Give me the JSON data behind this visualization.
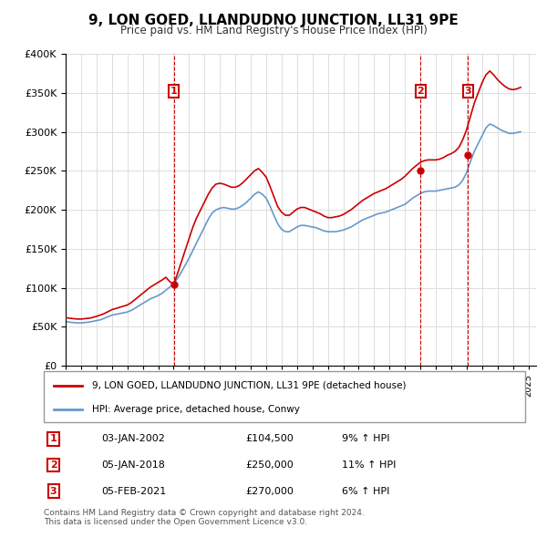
{
  "title": "9, LON GOED, LLANDUDNO JUNCTION, LL31 9PE",
  "subtitle": "Price paid vs. HM Land Registry's House Price Index (HPI)",
  "ylabel_ticks": [
    "£0",
    "£50K",
    "£100K",
    "£150K",
    "£200K",
    "£250K",
    "£300K",
    "£350K",
    "£400K"
  ],
  "ylim": [
    0,
    400000
  ],
  "xlim_start": 1995.0,
  "xlim_end": 2025.5,
  "sale_color": "#cc0000",
  "hpi_color": "#6699cc",
  "sale_label": "9, LON GOED, LLANDUDNO JUNCTION, LL31 9PE (detached house)",
  "hpi_label": "HPI: Average price, detached house, Conwy",
  "sales": [
    {
      "num": 1,
      "year": 2002.02,
      "price": 104500,
      "pct": "9%",
      "date_str": "03-JAN-2002",
      "price_str": "£104,500"
    },
    {
      "num": 2,
      "year": 2018.02,
      "price": 250000,
      "pct": "11%",
      "date_str": "05-JAN-2018",
      "price_str": "£250,000"
    },
    {
      "num": 3,
      "year": 2021.09,
      "price": 270000,
      "pct": "6%",
      "date_str": "05-FEB-2021",
      "price_str": "£270,000"
    }
  ],
  "footnote": "Contains HM Land Registry data © Crown copyright and database right 2024.\nThis data is licensed under the Open Government Licence v3.0.",
  "hpi_data": {
    "years": [
      1995.0,
      1995.25,
      1995.5,
      1995.75,
      1996.0,
      1996.25,
      1996.5,
      1996.75,
      1997.0,
      1997.25,
      1997.5,
      1997.75,
      1998.0,
      1998.25,
      1998.5,
      1998.75,
      1999.0,
      1999.25,
      1999.5,
      1999.75,
      2000.0,
      2000.25,
      2000.5,
      2000.75,
      2001.0,
      2001.25,
      2001.5,
      2001.75,
      2002.0,
      2002.25,
      2002.5,
      2002.75,
      2003.0,
      2003.25,
      2003.5,
      2003.75,
      2004.0,
      2004.25,
      2004.5,
      2004.75,
      2005.0,
      2005.25,
      2005.5,
      2005.75,
      2006.0,
      2006.25,
      2006.5,
      2006.75,
      2007.0,
      2007.25,
      2007.5,
      2007.75,
      2008.0,
      2008.25,
      2008.5,
      2008.75,
      2009.0,
      2009.25,
      2009.5,
      2009.75,
      2010.0,
      2010.25,
      2010.5,
      2010.75,
      2011.0,
      2011.25,
      2011.5,
      2011.75,
      2012.0,
      2012.25,
      2012.5,
      2012.75,
      2013.0,
      2013.25,
      2013.5,
      2013.75,
      2014.0,
      2014.25,
      2014.5,
      2014.75,
      2015.0,
      2015.25,
      2015.5,
      2015.75,
      2016.0,
      2016.25,
      2016.5,
      2016.75,
      2017.0,
      2017.25,
      2017.5,
      2017.75,
      2018.0,
      2018.25,
      2018.5,
      2018.75,
      2019.0,
      2019.25,
      2019.5,
      2019.75,
      2020.0,
      2020.25,
      2020.5,
      2020.75,
      2021.0,
      2021.25,
      2021.5,
      2021.75,
      2022.0,
      2022.25,
      2022.5,
      2022.75,
      2023.0,
      2023.25,
      2023.5,
      2023.75,
      2024.0,
      2024.25,
      2024.5
    ],
    "values": [
      57000,
      56000,
      55500,
      55000,
      55000,
      55500,
      56000,
      57000,
      58000,
      59000,
      61000,
      63000,
      65000,
      66000,
      67000,
      68000,
      69000,
      71000,
      74000,
      77000,
      80000,
      83000,
      86000,
      88000,
      90000,
      93000,
      97000,
      101000,
      105000,
      112000,
      120000,
      129000,
      138000,
      148000,
      158000,
      168000,
      178000,
      188000,
      196000,
      200000,
      202000,
      203000,
      202000,
      201000,
      201000,
      203000,
      206000,
      210000,
      215000,
      220000,
      223000,
      220000,
      215000,
      205000,
      193000,
      182000,
      175000,
      172000,
      172000,
      175000,
      178000,
      180000,
      180000,
      179000,
      178000,
      177000,
      175000,
      173000,
      172000,
      172000,
      172000,
      173000,
      174000,
      176000,
      178000,
      181000,
      184000,
      187000,
      189000,
      191000,
      193000,
      195000,
      196000,
      197000,
      199000,
      201000,
      203000,
      205000,
      207000,
      211000,
      215000,
      218000,
      221000,
      223000,
      224000,
      224000,
      224000,
      225000,
      226000,
      227000,
      228000,
      229000,
      232000,
      238000,
      248000,
      262000,
      275000,
      285000,
      295000,
      305000,
      310000,
      308000,
      305000,
      302000,
      300000,
      298000,
      298000,
      299000,
      300000
    ]
  },
  "sale_line_data": {
    "years": [
      1995.0,
      1995.25,
      1995.5,
      1995.75,
      1996.0,
      1996.25,
      1996.5,
      1996.75,
      1997.0,
      1997.25,
      1997.5,
      1997.75,
      1998.0,
      1998.25,
      1998.5,
      1998.75,
      1999.0,
      1999.25,
      1999.5,
      1999.75,
      2000.0,
      2000.25,
      2000.5,
      2000.75,
      2001.0,
      2001.25,
      2001.5,
      2001.75,
      2002.0,
      2002.25,
      2002.5,
      2002.75,
      2003.0,
      2003.25,
      2003.5,
      2003.75,
      2004.0,
      2004.25,
      2004.5,
      2004.75,
      2005.0,
      2005.25,
      2005.5,
      2005.75,
      2006.0,
      2006.25,
      2006.5,
      2006.75,
      2007.0,
      2007.25,
      2007.5,
      2007.75,
      2008.0,
      2008.25,
      2008.5,
      2008.75,
      2009.0,
      2009.25,
      2009.5,
      2009.75,
      2010.0,
      2010.25,
      2010.5,
      2010.75,
      2011.0,
      2011.25,
      2011.5,
      2011.75,
      2012.0,
      2012.25,
      2012.5,
      2012.75,
      2013.0,
      2013.25,
      2013.5,
      2013.75,
      2014.0,
      2014.25,
      2014.5,
      2014.75,
      2015.0,
      2015.25,
      2015.5,
      2015.75,
      2016.0,
      2016.25,
      2016.5,
      2016.75,
      2017.0,
      2017.25,
      2017.5,
      2017.75,
      2018.0,
      2018.25,
      2018.5,
      2018.75,
      2019.0,
      2019.25,
      2019.5,
      2019.75,
      2020.0,
      2020.25,
      2020.5,
      2020.75,
      2021.0,
      2021.25,
      2021.5,
      2021.75,
      2022.0,
      2022.25,
      2022.5,
      2022.75,
      2023.0,
      2023.25,
      2023.5,
      2023.75,
      2024.0,
      2024.25,
      2024.5
    ],
    "values": [
      62000,
      61000,
      60500,
      60000,
      60000,
      60500,
      61000,
      62000,
      63500,
      65000,
      67000,
      69500,
      72000,
      73500,
      75000,
      76500,
      78000,
      81000,
      85000,
      89000,
      93000,
      97000,
      101000,
      104000,
      107000,
      110000,
      113500,
      108000,
      104500,
      118000,
      133000,
      148000,
      163000,
      178000,
      190000,
      200000,
      210000,
      220000,
      228000,
      233000,
      234000,
      233000,
      231000,
      229000,
      229000,
      231000,
      235000,
      240000,
      245000,
      250000,
      253000,
      248000,
      242000,
      230000,
      217000,
      204000,
      197000,
      193000,
      193000,
      197000,
      201000,
      203000,
      203000,
      201000,
      199000,
      197000,
      195000,
      192000,
      190000,
      190000,
      191000,
      192000,
      194000,
      197000,
      200000,
      204000,
      208000,
      212000,
      215000,
      218000,
      221000,
      223000,
      225000,
      227000,
      230000,
      233000,
      236000,
      239000,
      243000,
      248000,
      253000,
      257000,
      261000,
      263000,
      264000,
      264000,
      264000,
      265000,
      267000,
      270000,
      272000,
      275000,
      280000,
      290000,
      303000,
      320000,
      337000,
      350000,
      363000,
      373000,
      378000,
      373000,
      367000,
      362000,
      358000,
      355000,
      354000,
      355000,
      357000
    ]
  }
}
